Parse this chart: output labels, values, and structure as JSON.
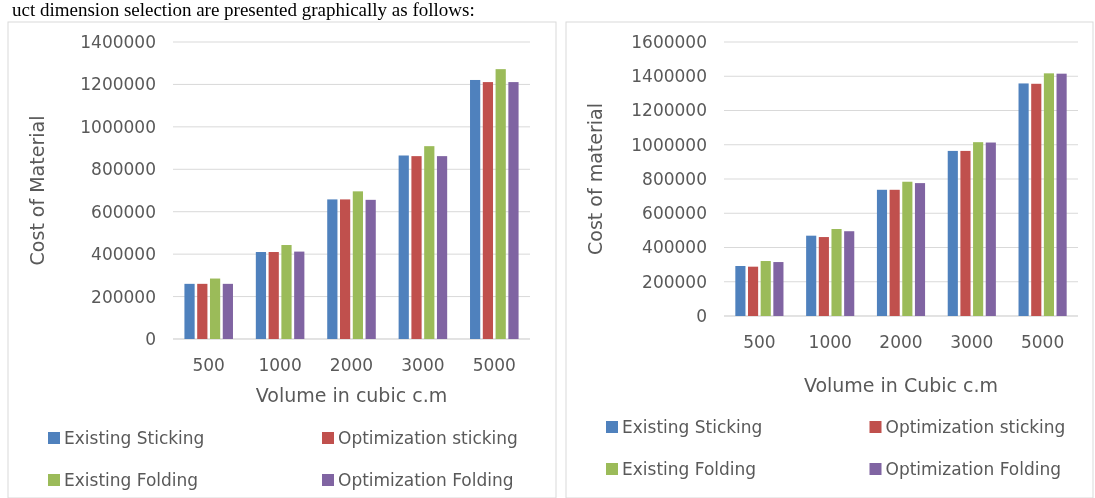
{
  "chart_data": [
    {
      "type": "bar",
      "annotations": [
        "uct dimension selection are presented graphically as follows:"
      ],
      "xlabel": "Volume in cubic c.m",
      "ylabel": "Cost of Material",
      "categories": [
        "500",
        "1000",
        "2000",
        "3000",
        "5000"
      ],
      "ylim": [
        0,
        1400000
      ],
      "yticks": [
        0,
        200000,
        400000,
        600000,
        800000,
        1000000,
        1200000,
        1400000
      ],
      "grid": "y",
      "legend": "bottom",
      "series": [
        {
          "name": "Existing Sticking",
          "color": "#4f81bd",
          "values": [
            260000,
            410000,
            658000,
            865000,
            1221000
          ]
        },
        {
          "name": "Optimization sticking",
          "color": "#c0504d",
          "values": [
            260000,
            410000,
            658000,
            862000,
            1211000
          ]
        },
        {
          "name": "Existing Folding",
          "color": "#9bbb59",
          "values": [
            285000,
            443000,
            696000,
            909000,
            1272000
          ]
        },
        {
          "name": "Optimization Folding",
          "color": "#8064a2",
          "values": [
            260000,
            412000,
            656000,
            862000,
            1211000
          ]
        }
      ]
    },
    {
      "type": "bar",
      "xlabel": "Volume in Cubic c.m",
      "ylabel": "Cost of material",
      "categories": [
        "500",
        "1000",
        "2000",
        "3000",
        "5000"
      ],
      "ylim": [
        0,
        1600000
      ],
      "yticks": [
        0,
        200000,
        400000,
        600000,
        800000,
        1000000,
        1200000,
        1400000,
        1600000
      ],
      "grid": "y",
      "legend": "bottom",
      "series": [
        {
          "name": "Existing Sticking",
          "color": "#4f81bd",
          "values": [
            292000,
            469000,
            737000,
            964000,
            1358000
          ]
        },
        {
          "name": "Optimization sticking",
          "color": "#c0504d",
          "values": [
            288000,
            461000,
            737000,
            964000,
            1356000
          ]
        },
        {
          "name": "Existing Folding",
          "color": "#9bbb59",
          "values": [
            321000,
            508000,
            784000,
            1015000,
            1417000
          ]
        },
        {
          "name": "Optimization Folding",
          "color": "#8064a2",
          "values": [
            315000,
            495000,
            776000,
            1013000,
            1415000
          ]
        }
      ]
    }
  ]
}
